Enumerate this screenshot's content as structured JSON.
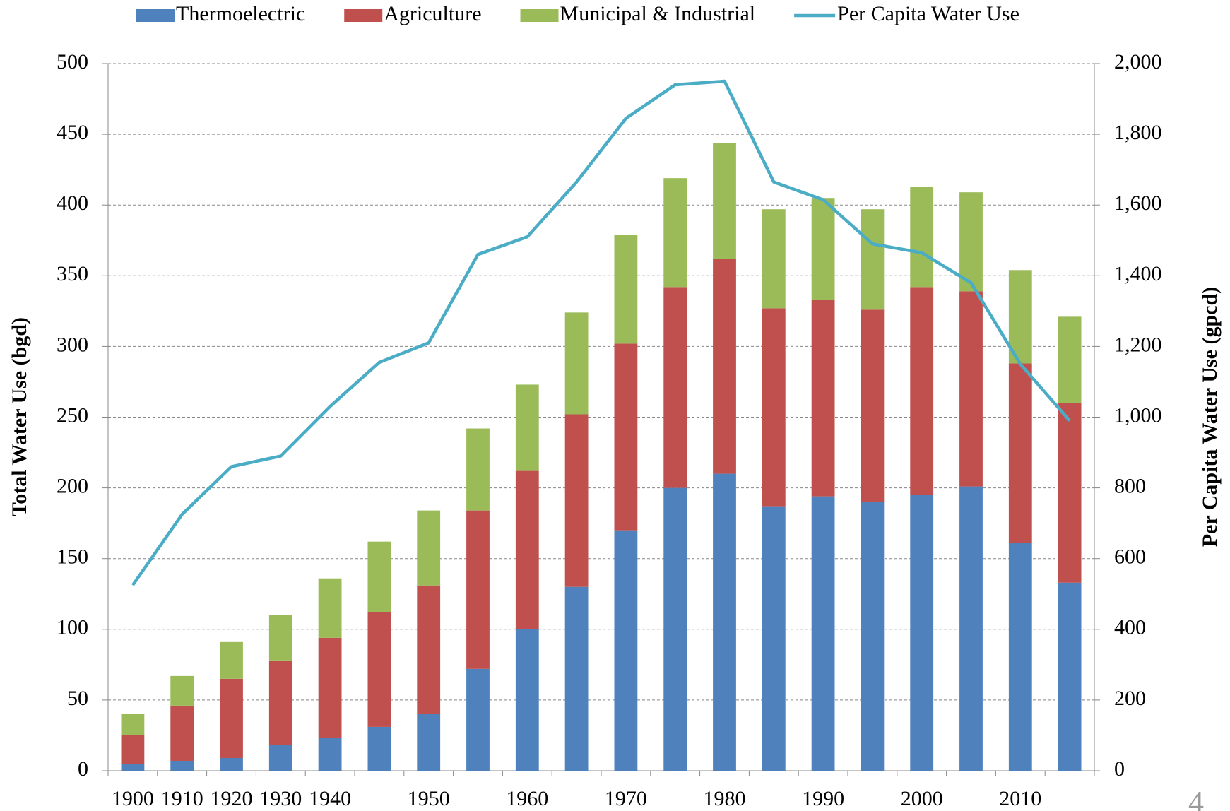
{
  "chart_data": {
    "type": "bar",
    "stacked": true,
    "y_label": "Total Water Use (bgd)",
    "y2_label": "Per Capita Water Use (gpcd)",
    "categories": [
      "1900",
      "1910",
      "1920",
      "1930",
      "1940",
      null,
      "1950",
      null,
      "1960",
      null,
      "1970",
      null,
      "1980",
      null,
      "1990",
      null,
      "2000",
      null,
      "2010",
      null
    ],
    "series": [
      {
        "name": "Thermoelectric",
        "type": "bar",
        "color": "#4f81bd",
        "values": [
          5,
          7,
          9,
          18,
          23,
          31,
          40,
          72,
          100,
          130,
          170,
          200,
          210,
          187,
          194,
          190,
          195,
          201,
          161,
          133
        ]
      },
      {
        "name": "Agriculture",
        "type": "bar",
        "color": "#c0504d",
        "values": [
          20,
          39,
          56,
          60,
          71,
          81,
          91,
          112,
          112,
          122,
          132,
          142,
          152,
          140,
          139,
          136,
          147,
          138,
          127,
          127
        ]
      },
      {
        "name": "Municipal & Industrial",
        "type": "bar",
        "color": "#9bbb59",
        "values": [
          15,
          21,
          26,
          32,
          42,
          50,
          53,
          58,
          61,
          72,
          77,
          77,
          82,
          70,
          72,
          71,
          71,
          70,
          66,
          61
        ]
      },
      {
        "name": "Per Capita Water Use",
        "type": "line",
        "axis": "y2",
        "color": "#4bacc6",
        "values": [
          525,
          725,
          860,
          890,
          1030,
          1155,
          1210,
          1460,
          1510,
          1665,
          1845,
          1940,
          1950,
          1665,
          1615,
          1490,
          1465,
          1380,
          1150,
          990
        ]
      }
    ],
    "ylim": [
      0,
      500
    ],
    "yticks": [
      0,
      50,
      100,
      150,
      200,
      250,
      300,
      350,
      400,
      450,
      500
    ],
    "y2lim": [
      0,
      2000
    ],
    "y2ticks": [
      0,
      200,
      400,
      600,
      800,
      {
        "value": 1000,
        "label": "1,000"
      },
      {
        "value": 1200,
        "label": "1,200"
      },
      {
        "value": 1400,
        "label": "1,400"
      },
      {
        "value": 1600,
        "label": "1,600"
      },
      {
        "value": 1800,
        "label": "1,800"
      },
      {
        "value": 2000,
        "label": "2,000"
      }
    ],
    "grid": true,
    "legend": "top"
  },
  "page_number": "4"
}
